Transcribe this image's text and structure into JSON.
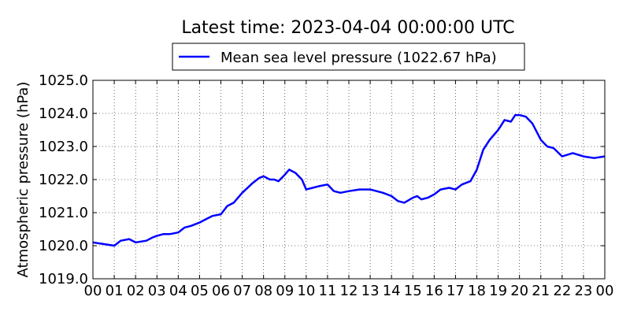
{
  "chart_data": {
    "type": "line",
    "title": "Latest time: 2023-04-04 00:00:00 UTC",
    "xlabel": "",
    "ylabel": "Atmospheric pressure (hPa)",
    "xlim": [
      0,
      24
    ],
    "ylim": [
      1019.0,
      1025.0
    ],
    "x_ticks": [
      "00",
      "01",
      "02",
      "03",
      "04",
      "05",
      "06",
      "07",
      "08",
      "09",
      "10",
      "11",
      "12",
      "13",
      "14",
      "15",
      "16",
      "17",
      "18",
      "19",
      "20",
      "21",
      "22",
      "23",
      "00"
    ],
    "y_ticks": [
      "1019.0",
      "1020.0",
      "1021.0",
      "1022.0",
      "1023.0",
      "1024.0",
      "1025.0"
    ],
    "grid": true,
    "legend_position": "top-center",
    "series": [
      {
        "name": "Mean sea level pressure (1022.67 hPa)",
        "color": "#0000ff",
        "x": [
          0,
          0.5,
          1,
          1.3,
          1.7,
          2,
          2.5,
          2.8,
          3,
          3.3,
          3.6,
          4,
          4.3,
          4.6,
          5,
          5.3,
          5.6,
          6,
          6.3,
          6.6,
          7,
          7.5,
          7.8,
          8,
          8.3,
          8.5,
          8.7,
          9,
          9.2,
          9.5,
          9.8,
          10,
          10.3,
          10.6,
          11,
          11.3,
          11.6,
          12,
          12.5,
          13,
          13.3,
          13.6,
          14,
          14.3,
          14.6,
          15,
          15.2,
          15.4,
          15.7,
          16,
          16.3,
          16.7,
          17,
          17.3,
          17.7,
          18,
          18.3,
          18.6,
          19,
          19.3,
          19.6,
          19.8,
          20,
          20.3,
          20.6,
          21,
          21.3,
          21.6,
          22,
          22.5,
          23,
          23.5,
          24
        ],
        "y": [
          1020.1,
          1020.05,
          1020.0,
          1020.15,
          1020.2,
          1020.1,
          1020.15,
          1020.25,
          1020.3,
          1020.35,
          1020.35,
          1020.4,
          1020.55,
          1020.6,
          1020.7,
          1020.8,
          1020.9,
          1020.95,
          1021.2,
          1021.3,
          1021.6,
          1021.9,
          1022.05,
          1022.1,
          1022.0,
          1022.0,
          1021.95,
          1022.15,
          1022.3,
          1022.2,
          1022.0,
          1021.7,
          1021.75,
          1021.8,
          1021.85,
          1021.65,
          1021.6,
          1021.65,
          1021.7,
          1021.7,
          1021.65,
          1021.6,
          1021.5,
          1021.35,
          1021.3,
          1021.45,
          1021.5,
          1021.4,
          1021.45,
          1021.55,
          1021.7,
          1021.75,
          1021.7,
          1021.85,
          1021.95,
          1022.3,
          1022.9,
          1023.2,
          1023.5,
          1023.8,
          1023.75,
          1023.95,
          1023.95,
          1023.9,
          1023.7,
          1023.2,
          1023.0,
          1022.95,
          1022.7,
          1022.8,
          1022.7,
          1022.65,
          1022.7
        ]
      }
    ]
  }
}
